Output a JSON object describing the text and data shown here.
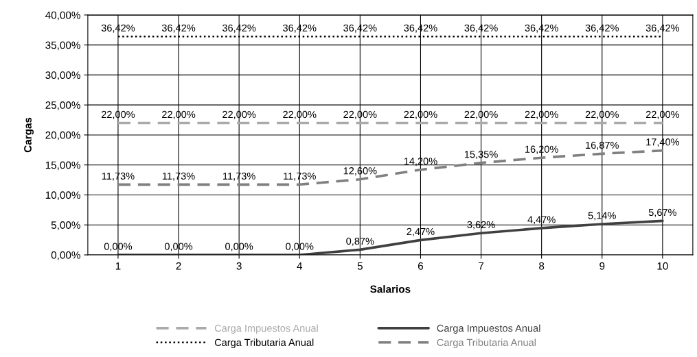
{
  "chart_data": {
    "type": "line",
    "xlabel": "Salarios",
    "ylabel": "Cargas",
    "categories": [
      "1",
      "2",
      "3",
      "4",
      "5",
      "6",
      "7",
      "8",
      "9",
      "10"
    ],
    "series": [
      {
        "name": "Carga Impuestos Anual",
        "color": "#aaaaaa",
        "line_style": "dashed",
        "values": [
          22,
          22,
          22,
          22,
          22,
          22,
          22,
          22,
          22,
          22
        ],
        "value_labels": [
          "22,00%",
          "22,00%",
          "22,00%",
          "22,00%",
          "22,00%",
          "22,00%",
          "22,00%",
          "22,00%",
          "22,00%",
          "22,00%"
        ]
      },
      {
        "name": "Carga Impuestos Anual",
        "color": "#404040",
        "line_style": "solid",
        "values": [
          0,
          0,
          0,
          0,
          0.87,
          2.47,
          3.62,
          4.47,
          5.14,
          5.67
        ],
        "value_labels": [
          "0,00%",
          "0,00%",
          "0,00%",
          "0,00%",
          "0,87%",
          "2,47%",
          "3,62%",
          "4,47%",
          "5,14%",
          "5,67%"
        ]
      },
      {
        "name": "Carga Tributaria Anual",
        "color": "#000000",
        "line_style": "dotted",
        "values": [
          36.42,
          36.42,
          36.42,
          36.42,
          36.42,
          36.42,
          36.42,
          36.42,
          36.42,
          36.42
        ],
        "value_labels": [
          "36,42%",
          "36,42%",
          "36,42%",
          "36,42%",
          "36,42%",
          "36,42%",
          "36,42%",
          "36,42%",
          "36,42%",
          "36,42%"
        ]
      },
      {
        "name": "Carga Tributaria Anual",
        "color": "#808080",
        "line_style": "dashed",
        "values": [
          11.73,
          11.73,
          11.73,
          11.73,
          12.6,
          14.2,
          15.35,
          16.2,
          16.87,
          17.4
        ],
        "value_labels": [
          "11,73%",
          "11,73%",
          "11,73%",
          "11,73%",
          "12,60%",
          "14,20%",
          "15,35%",
          "16,20%",
          "16,87%",
          "17,40%"
        ]
      }
    ],
    "ylim": [
      0,
      40
    ],
    "yticks": [
      {
        "value": 0,
        "label": "0,00%"
      },
      {
        "value": 5,
        "label": "5,00%"
      },
      {
        "value": 10,
        "label": "10,00%"
      },
      {
        "value": 15,
        "label": "15,00%"
      },
      {
        "value": 20,
        "label": "20,00%"
      },
      {
        "value": 25,
        "label": "25,00%"
      },
      {
        "value": 30,
        "label": "30,00%"
      },
      {
        "value": 35,
        "label": "35,00%"
      },
      {
        "value": 40,
        "label": "40,00%"
      }
    ],
    "grid": true,
    "legend": "bottom",
    "marker": "none"
  }
}
